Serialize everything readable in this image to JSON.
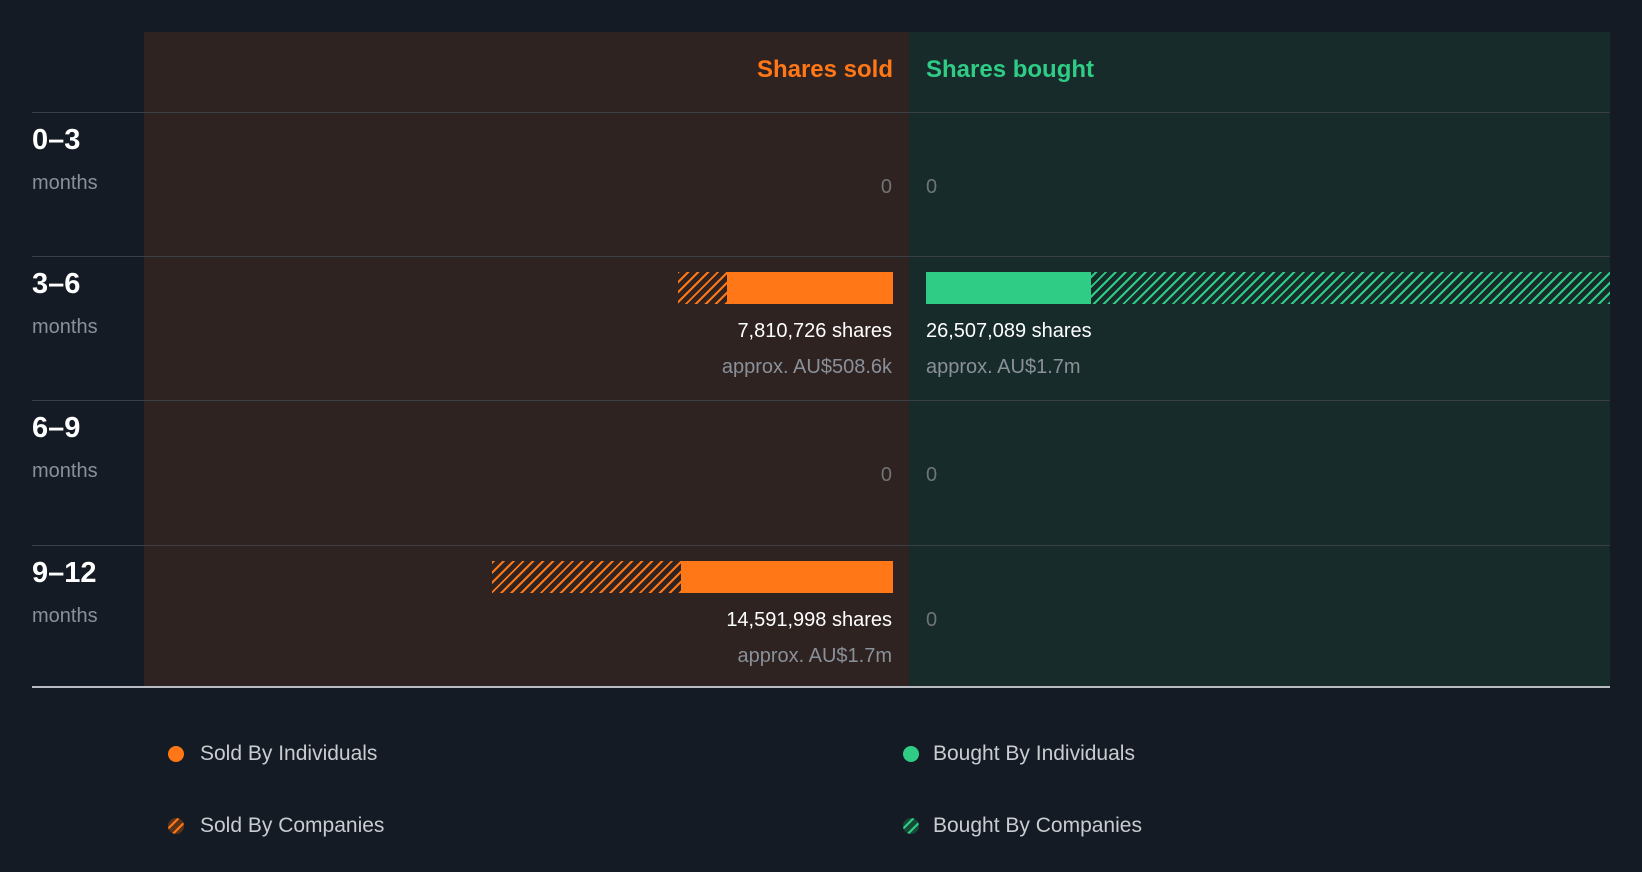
{
  "chart_data": {
    "type": "bar",
    "title": "",
    "columns": {
      "sold": "Shares sold",
      "bought": "Shares bought"
    },
    "categories": [
      {
        "label": "0–3",
        "sub": "months"
      },
      {
        "label": "3–6",
        "sub": "months"
      },
      {
        "label": "6–9",
        "sub": "months"
      },
      {
        "label": "9–12",
        "sub": "months"
      }
    ],
    "series": [
      {
        "name": "Sold By Individuals",
        "side": "sold",
        "style": "solid",
        "color": "#ff7716",
        "values": [
          0,
          6040000,
          0,
          7700000
        ]
      },
      {
        "name": "Sold By Companies",
        "side": "sold",
        "style": "hatched",
        "color": "#ff7716",
        "values": [
          0,
          1770726,
          0,
          6891998
        ]
      },
      {
        "name": "Bought By Individuals",
        "side": "bought",
        "style": "solid",
        "color": "#2ecc85",
        "values": [
          0,
          6000000,
          0,
          0
        ]
      },
      {
        "name": "Bought By Companies",
        "side": "bought",
        "style": "hatched",
        "color": "#2ecc85",
        "values": [
          0,
          20507089,
          0,
          0
        ]
      }
    ],
    "sold_totals": [
      "0",
      "7,810,726 shares",
      "0",
      "14,591,998 shares"
    ],
    "sold_approx": [
      "",
      "approx. AU$508.6k",
      "",
      "approx. AU$1.7m"
    ],
    "bought_totals": [
      "0",
      "26,507,089 shares",
      "0",
      "0"
    ],
    "bought_approx": [
      "",
      "approx. AU$1.7m",
      "",
      ""
    ]
  }
}
